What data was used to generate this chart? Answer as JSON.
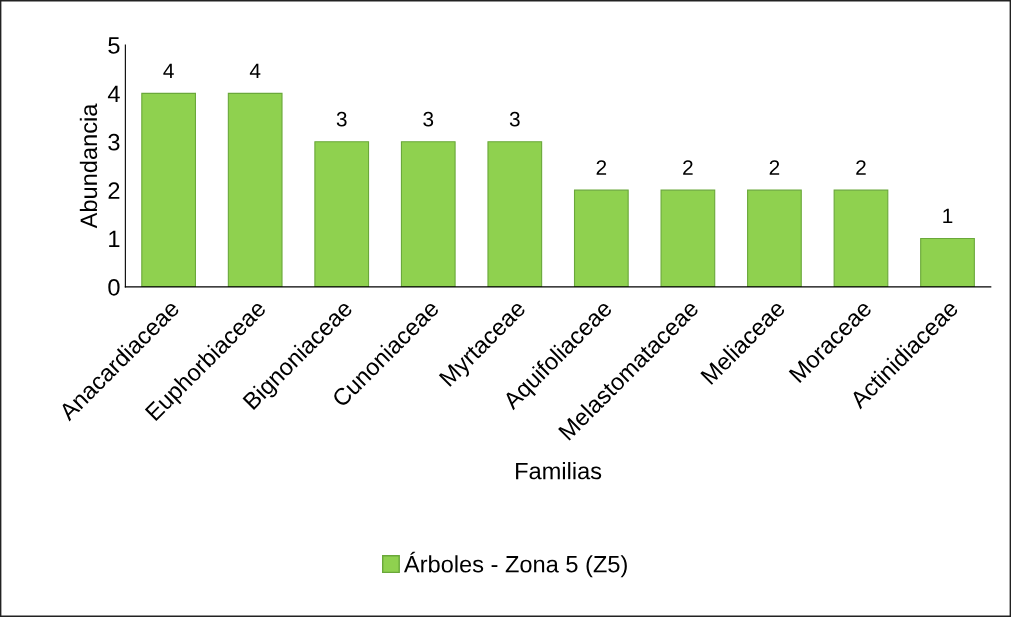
{
  "chart_data": {
    "type": "bar",
    "xlabel": "Familias",
    "ylabel": "Abundancia",
    "categories": [
      "Anacardiaceae",
      "Euphorbiaceae",
      "Bignoniaceae",
      "Cunoniaceae",
      "Myrtaceae",
      "Aquifoliaceae",
      "Melastomataceae",
      "Meliaceae",
      "Moraceae",
      "Actinidiaceae"
    ],
    "series": [
      {
        "name": "Árboles - Zona 5 (Z5)",
        "color": "#8fd14f",
        "values": [
          4,
          4,
          3,
          3,
          3,
          2,
          2,
          2,
          2,
          1
        ]
      }
    ],
    "ylim": [
      0,
      5
    ],
    "yticks": [
      0,
      1,
      2,
      3,
      4,
      5
    ],
    "grid": false,
    "legend": "bottom",
    "data_labels": true
  }
}
